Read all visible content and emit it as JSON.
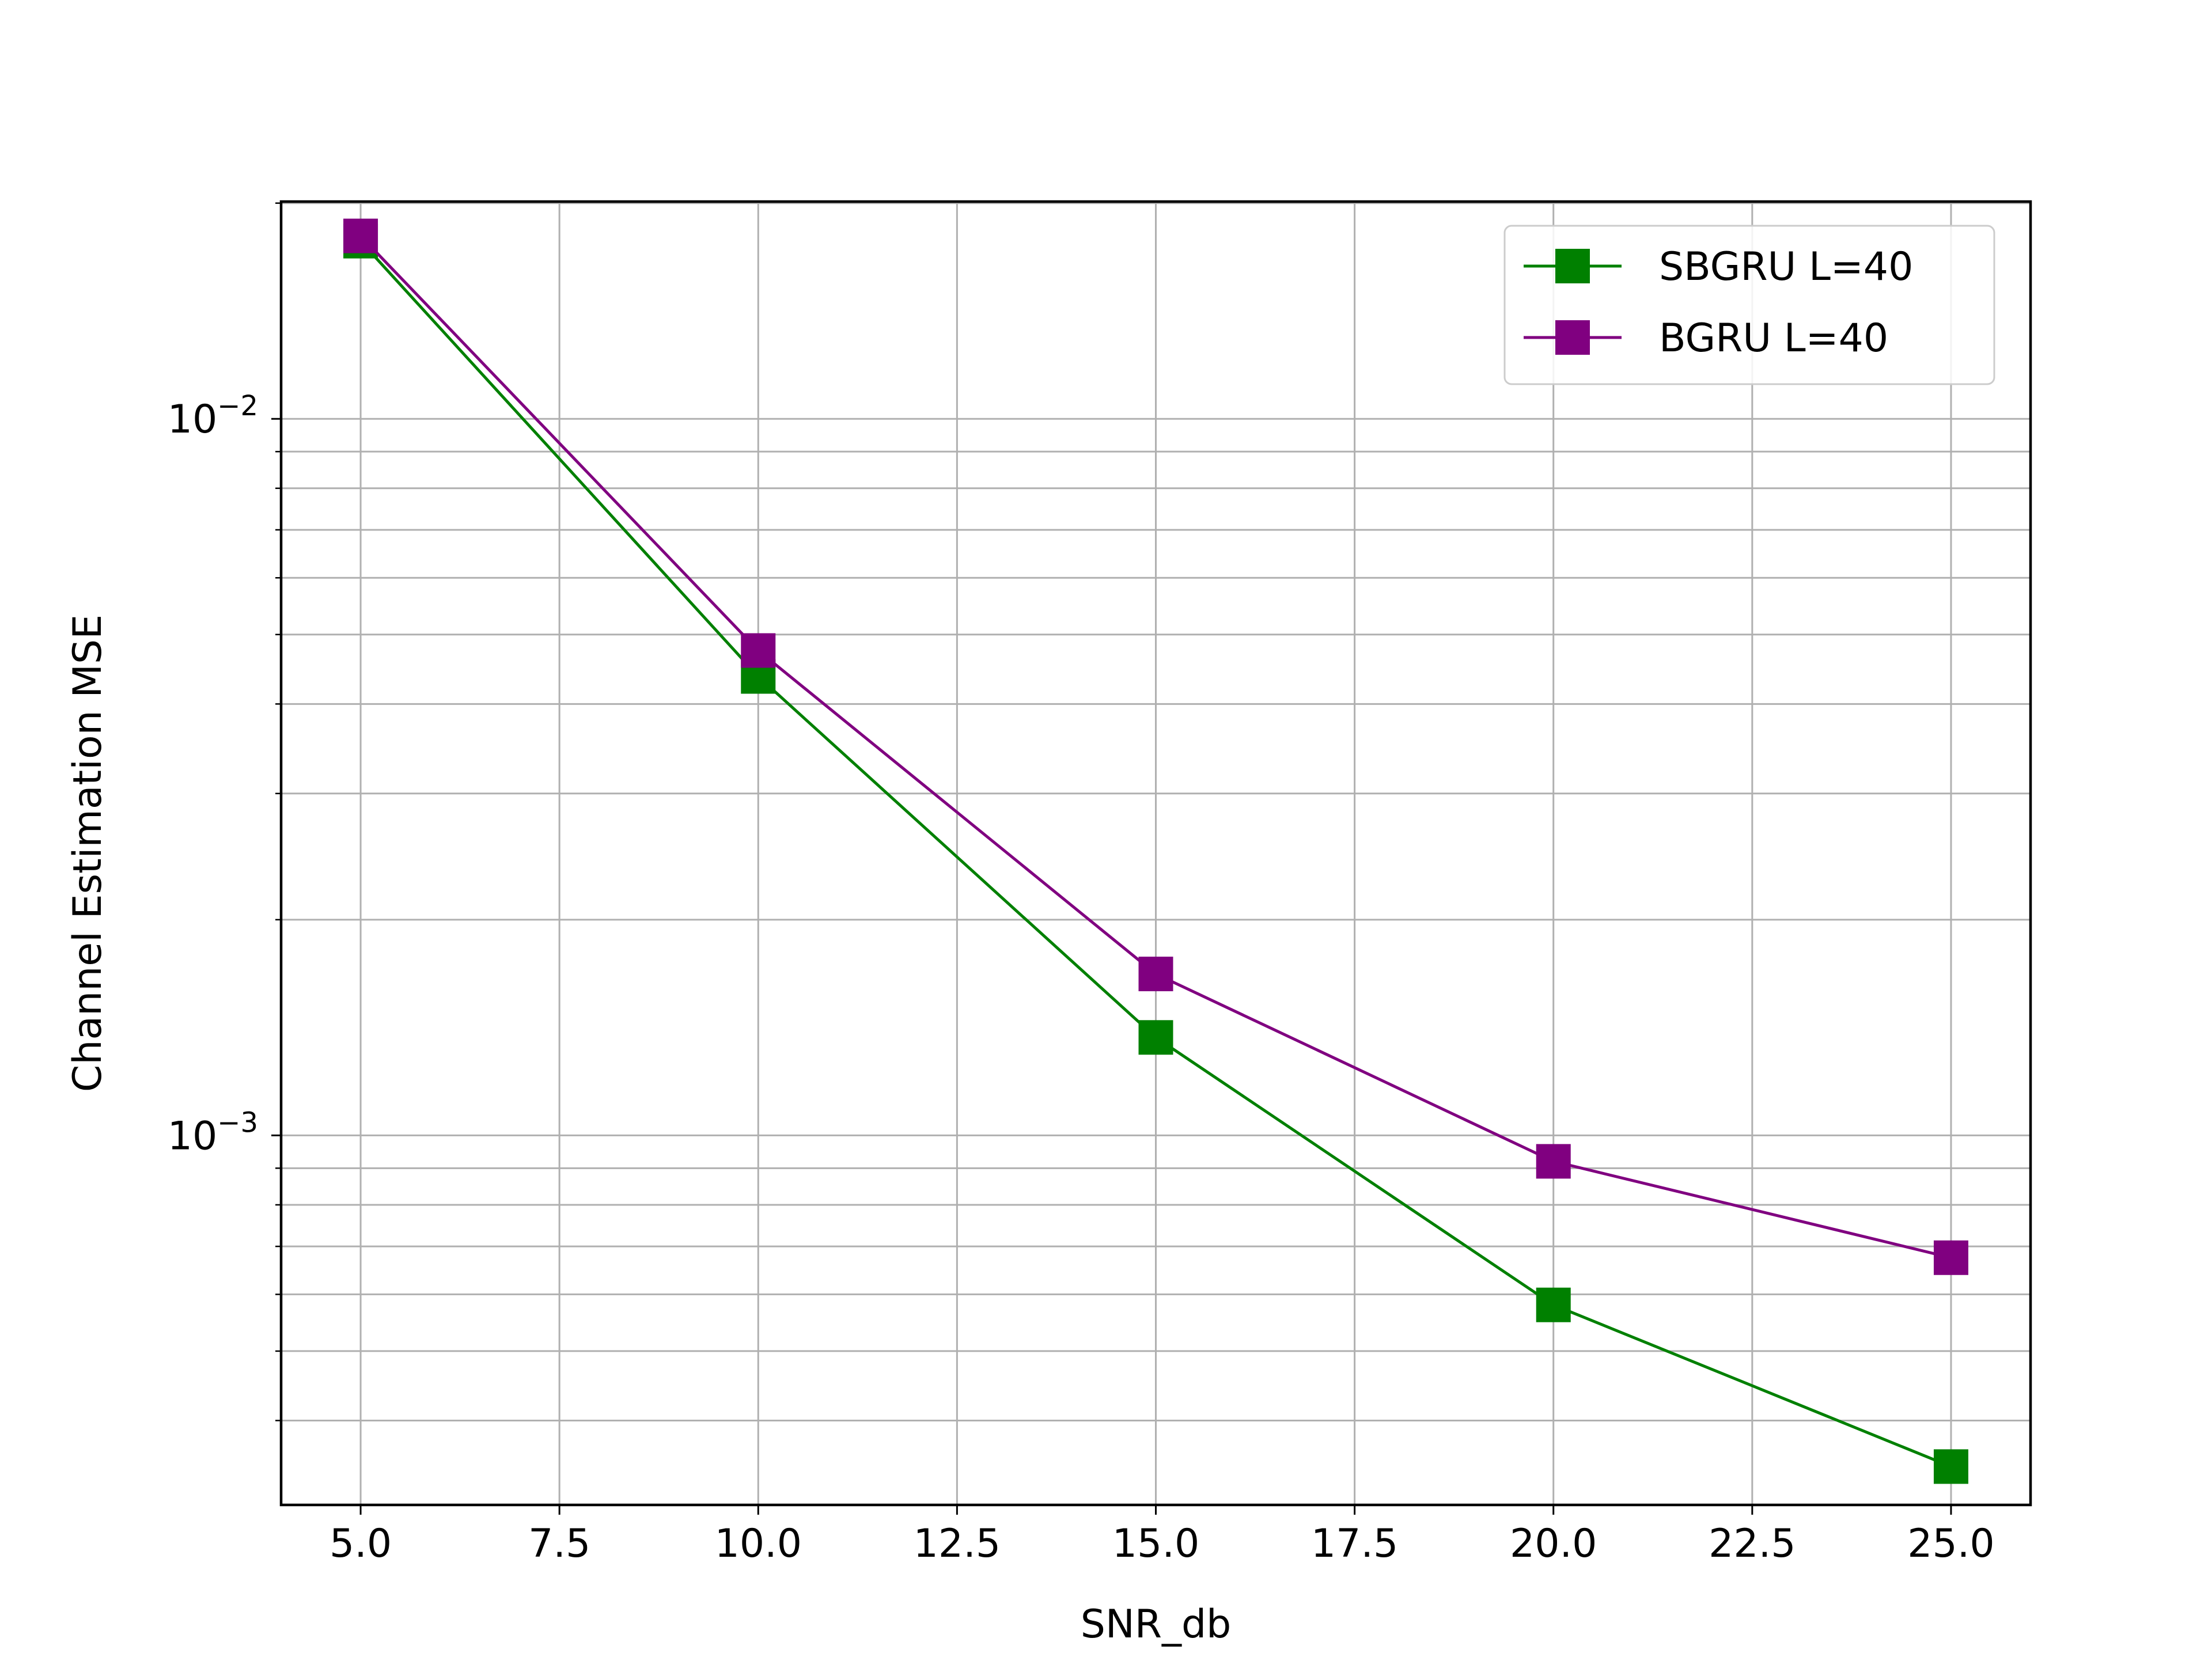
{
  "chart_data": {
    "type": "line",
    "title": "",
    "xlabel": "SNR_db",
    "ylabel": "Channel Estimation MSE",
    "yscale": "log",
    "grid": true,
    "grid_minor_y": true,
    "legend_position": "top-right",
    "xlim": [
      4.0,
      26.0
    ],
    "ylim": [
      0.000305,
      0.0201
    ],
    "x_ticks": [
      5.0,
      7.5,
      10.0,
      12.5,
      15.0,
      17.5,
      20.0,
      22.5,
      25.0
    ],
    "x_tick_labels": [
      "5.0",
      "7.5",
      "10.0",
      "12.5",
      "15.0",
      "17.5",
      "20.0",
      "22.5",
      "25.0"
    ],
    "y_major_ticks": [
      0.001,
      0.01
    ],
    "y_major_tick_labels": [
      {
        "base": "10",
        "exp": "−3"
      },
      {
        "base": "10",
        "exp": "−2"
      }
    ],
    "x": [
      5,
      10,
      15,
      20,
      25
    ],
    "series": [
      {
        "name": "SBGRU L=40",
        "color": "#008000",
        "marker": "square",
        "values": [
          0.0177,
          0.00437,
          0.00137,
          0.00058,
          0.000345
        ]
      },
      {
        "name": "BGRU L=40",
        "color": "#800080",
        "marker": "square",
        "values": [
          0.018,
          0.00475,
          0.00168,
          0.00092,
          0.000675
        ]
      }
    ]
  }
}
